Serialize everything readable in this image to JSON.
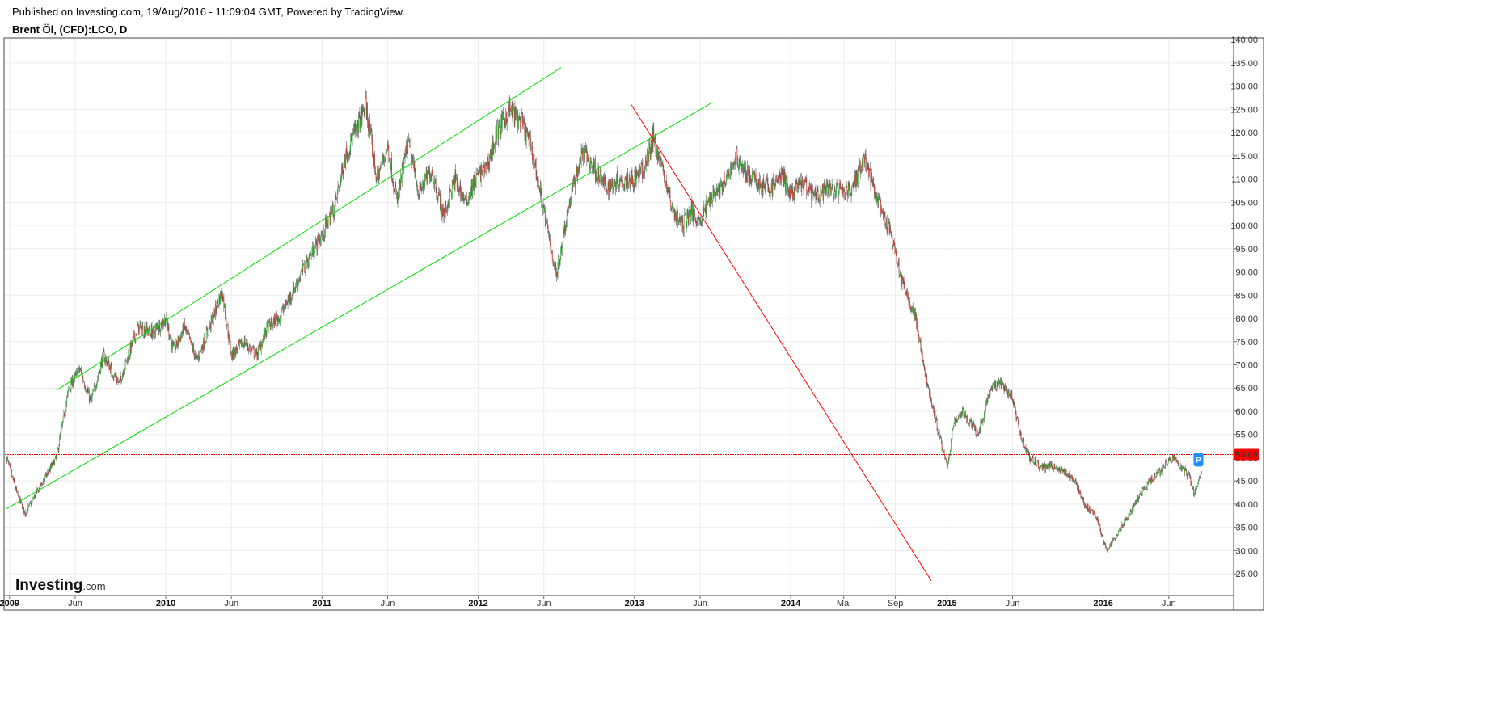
{
  "header": {
    "published": "Published on Investing.com, 19/Aug/2016 - 11:09:04 GMT, Powered by TradingView.",
    "symbol": "Brent Öl, (CFD):LCO, D"
  },
  "logo": {
    "text": "Investing",
    "suffix": ".com"
  },
  "chart_data": {
    "type": "candlestick",
    "title": "Brent Öl, (CFD):LCO, D",
    "x_range": [
      2009.0,
      2016.75
    ],
    "ylim": [
      25,
      140
    ],
    "grid": true,
    "y_ticks": [
      "25.00",
      "30.00",
      "35.00",
      "40.00",
      "45.00",
      "50.00",
      "55.00",
      "60.00",
      "65.00",
      "70.00",
      "75.00",
      "80.00",
      "85.00",
      "90.00",
      "95.00",
      "100.00",
      "105.00",
      "110.00",
      "115.00",
      "120.00",
      "125.00",
      "130.00",
      "135.00",
      "140.00"
    ],
    "x_ticks": [
      {
        "label": "2009",
        "t": 2009.0,
        "bold": true
      },
      {
        "label": "Jun",
        "t": 2009.42,
        "bold": false
      },
      {
        "label": "2010",
        "t": 2010.0,
        "bold": true
      },
      {
        "label": "Jun",
        "t": 2010.42,
        "bold": false
      },
      {
        "label": "2011",
        "t": 2011.0,
        "bold": true
      },
      {
        "label": "Jun",
        "t": 2011.42,
        "bold": false
      },
      {
        "label": "2012",
        "t": 2012.0,
        "bold": true
      },
      {
        "label": "Jun",
        "t": 2012.42,
        "bold": false
      },
      {
        "label": "2013",
        "t": 2013.0,
        "bold": true
      },
      {
        "label": "Jun",
        "t": 2013.42,
        "bold": false
      },
      {
        "label": "2014",
        "t": 2014.0,
        "bold": true
      },
      {
        "label": "Mai",
        "t": 2014.34,
        "bold": false
      },
      {
        "label": "Sep",
        "t": 2014.67,
        "bold": false
      },
      {
        "label": "2015",
        "t": 2015.0,
        "bold": true
      },
      {
        "label": "Jun",
        "t": 2015.42,
        "bold": false
      },
      {
        "label": "2016",
        "t": 2016.0,
        "bold": true
      },
      {
        "label": "Jun",
        "t": 2016.42,
        "bold": false
      }
    ],
    "price_path": [
      [
        2008.98,
        50
      ],
      [
        2009.05,
        42
      ],
      [
        2009.1,
        38
      ],
      [
        2009.2,
        44
      ],
      [
        2009.3,
        50
      ],
      [
        2009.38,
        65
      ],
      [
        2009.45,
        69
      ],
      [
        2009.52,
        62
      ],
      [
        2009.6,
        72
      ],
      [
        2009.7,
        66
      ],
      [
        2009.82,
        78
      ],
      [
        2009.92,
        77
      ],
      [
        2010.0,
        80
      ],
      [
        2010.05,
        73
      ],
      [
        2010.12,
        78
      ],
      [
        2010.2,
        71
      ],
      [
        2010.3,
        80
      ],
      [
        2010.36,
        86
      ],
      [
        2010.42,
        72
      ],
      [
        2010.5,
        75
      ],
      [
        2010.58,
        72
      ],
      [
        2010.65,
        78
      ],
      [
        2010.72,
        80
      ],
      [
        2010.8,
        85
      ],
      [
        2010.9,
        92
      ],
      [
        2011.0,
        98
      ],
      [
        2011.08,
        104
      ],
      [
        2011.15,
        115
      ],
      [
        2011.28,
        126
      ],
      [
        2011.35,
        110
      ],
      [
        2011.42,
        117
      ],
      [
        2011.48,
        105
      ],
      [
        2011.55,
        118
      ],
      [
        2011.62,
        107
      ],
      [
        2011.7,
        112
      ],
      [
        2011.78,
        102
      ],
      [
        2011.85,
        110
      ],
      [
        2011.92,
        105
      ],
      [
        2012.0,
        111
      ],
      [
        2012.05,
        112
      ],
      [
        2012.12,
        120
      ],
      [
        2012.2,
        125
      ],
      [
        2012.28,
        122
      ],
      [
        2012.34,
        117
      ],
      [
        2012.42,
        103
      ],
      [
        2012.46,
        96
      ],
      [
        2012.5,
        89
      ],
      [
        2012.57,
        103
      ],
      [
        2012.62,
        110
      ],
      [
        2012.67,
        116
      ],
      [
        2012.75,
        112
      ],
      [
        2012.82,
        108
      ],
      [
        2012.9,
        110
      ],
      [
        2013.0,
        110
      ],
      [
        2013.06,
        112
      ],
      [
        2013.12,
        119
      ],
      [
        2013.18,
        112
      ],
      [
        2013.24,
        104
      ],
      [
        2013.3,
        100
      ],
      [
        2013.36,
        103
      ],
      [
        2013.42,
        101
      ],
      [
        2013.5,
        107
      ],
      [
        2013.58,
        109
      ],
      [
        2013.65,
        115
      ],
      [
        2013.72,
        111
      ],
      [
        2013.8,
        109
      ],
      [
        2013.88,
        108
      ],
      [
        2013.94,
        111
      ],
      [
        2014.0,
        107
      ],
      [
        2014.08,
        109
      ],
      [
        2014.15,
        106
      ],
      [
        2014.25,
        108
      ],
      [
        2014.35,
        107
      ],
      [
        2014.42,
        110
      ],
      [
        2014.47,
        115
      ],
      [
        2014.52,
        109
      ],
      [
        2014.58,
        103
      ],
      [
        2014.64,
        98
      ],
      [
        2014.72,
        87
      ],
      [
        2014.8,
        80
      ],
      [
        2014.85,
        70
      ],
      [
        2014.9,
        62
      ],
      [
        2014.95,
        55
      ],
      [
        2015.0,
        48
      ],
      [
        2015.05,
        58
      ],
      [
        2015.1,
        60
      ],
      [
        2015.2,
        55
      ],
      [
        2015.28,
        65
      ],
      [
        2015.35,
        66
      ],
      [
        2015.42,
        63
      ],
      [
        2015.47,
        55
      ],
      [
        2015.53,
        50
      ],
      [
        2015.6,
        48
      ],
      [
        2015.68,
        48
      ],
      [
        2015.75,
        47
      ],
      [
        2015.82,
        45
      ],
      [
        2015.88,
        40
      ],
      [
        2015.96,
        37
      ],
      [
        2016.02,
        30
      ],
      [
        2016.08,
        33
      ],
      [
        2016.15,
        37
      ],
      [
        2016.22,
        41
      ],
      [
        2016.3,
        45
      ],
      [
        2016.38,
        48
      ],
      [
        2016.45,
        50
      ],
      [
        2016.5,
        48
      ],
      [
        2016.55,
        46
      ],
      [
        2016.58,
        42
      ],
      [
        2016.63,
        47
      ]
    ],
    "last_price": "50.69",
    "annotations": [
      {
        "type": "trendline",
        "color": "#00dd00",
        "from": [
          2009.3,
          64.5
        ],
        "to": [
          2012.53,
          134
        ]
      },
      {
        "type": "trendline",
        "color": "#00dd00",
        "from": [
          2008.98,
          39
        ],
        "to": [
          2013.5,
          126.5
        ]
      },
      {
        "type": "trendline",
        "color": "#ff0000",
        "from": [
          2012.98,
          126
        ],
        "to": [
          2014.9,
          23.5
        ]
      }
    ],
    "colors": {
      "up": "#2fb32f",
      "down": "#c8312b",
      "wick": "#555555",
      "last_price": "#ff0000",
      "marker": "#1e90ff"
    },
    "marker": {
      "label": "P",
      "t": 2016.61,
      "price": 49.5
    }
  }
}
